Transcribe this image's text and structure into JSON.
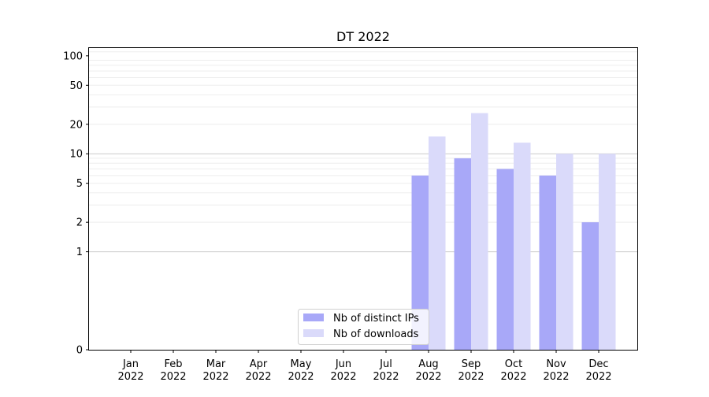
{
  "chart_data": {
    "type": "bar",
    "title": "DT 2022",
    "xlabel": "",
    "ylabel": "",
    "scale": "symlog",
    "categories": [
      {
        "month": "Jan",
        "year": "2022"
      },
      {
        "month": "Feb",
        "year": "2022"
      },
      {
        "month": "Mar",
        "year": "2022"
      },
      {
        "month": "Apr",
        "year": "2022"
      },
      {
        "month": "May",
        "year": "2022"
      },
      {
        "month": "Jun",
        "year": "2022"
      },
      {
        "month": "Jul",
        "year": "2022"
      },
      {
        "month": "Aug",
        "year": "2022"
      },
      {
        "month": "Sep",
        "year": "2022"
      },
      {
        "month": "Oct",
        "year": "2022"
      },
      {
        "month": "Nov",
        "year": "2022"
      },
      {
        "month": "Dec",
        "year": "2022"
      }
    ],
    "series": [
      {
        "name": "Nb of distinct IPs",
        "color": "#a8a8f8",
        "values": [
          0,
          0,
          0,
          0,
          0,
          0,
          0,
          6,
          9,
          7,
          6,
          2
        ]
      },
      {
        "name": "Nb of downloads",
        "color": "#dadafa",
        "values": [
          0,
          0,
          0,
          0,
          0,
          0,
          0,
          15,
          26,
          13,
          10,
          10
        ]
      }
    ],
    "yticks": [
      0,
      1,
      2,
      5,
      10,
      20,
      50,
      100
    ],
    "ytick_labels": [
      "0",
      "1",
      "2",
      "5",
      "10",
      "20",
      "50",
      "100"
    ],
    "ylim": [
      0,
      120
    ],
    "grid": "y",
    "legend_position": "lower-center"
  }
}
